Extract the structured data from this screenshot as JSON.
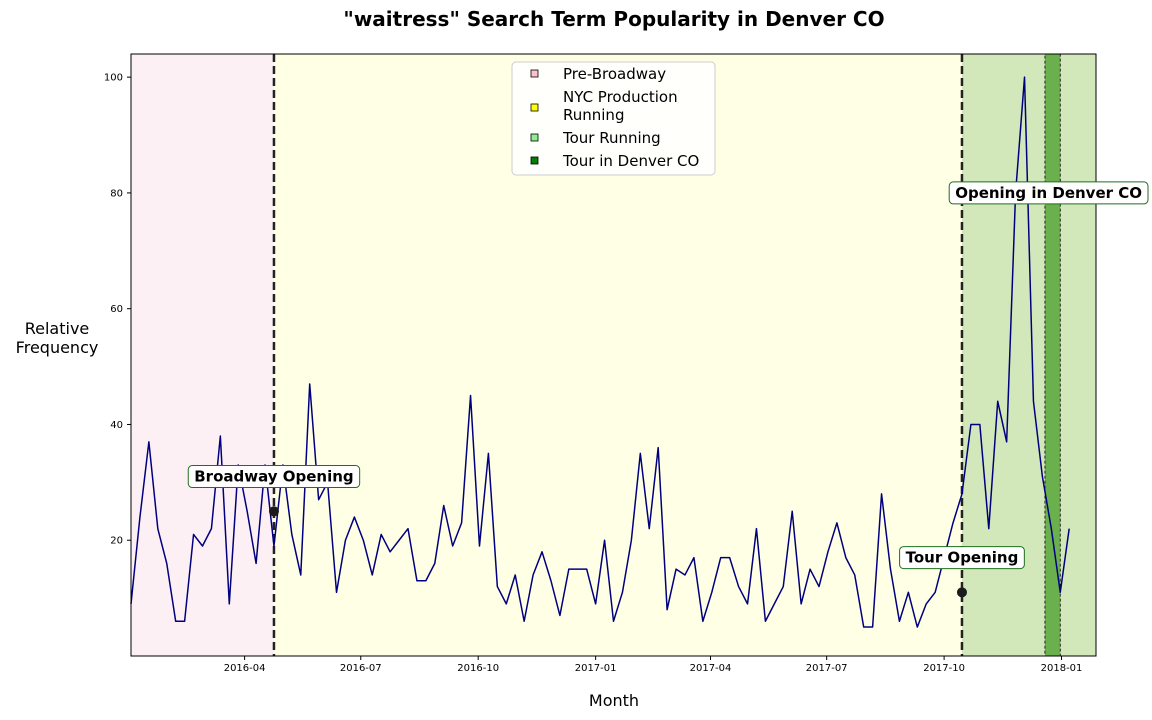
{
  "chart_data": {
    "type": "line",
    "title": "\"waitress\" Search Term Popularity in Denver CO",
    "xlabel": "Month",
    "ylabel_lines": [
      "Relative",
      "Frequency"
    ],
    "x_range": [
      "2016-01-03",
      "2018-01-28"
    ],
    "y_range": [
      0,
      104
    ],
    "y_ticks": [
      20,
      40,
      60,
      80,
      100
    ],
    "x_ticks": [
      "2016-04",
      "2016-07",
      "2016-10",
      "2017-01",
      "2017-04",
      "2017-07",
      "2017-10",
      "2018-01"
    ],
    "grid": false,
    "legend_position": "top-center",
    "line_color": "#00007f",
    "series": [
      {
        "start_date": "2016-01-03",
        "interval_days": 7,
        "values": [
          9,
          24,
          37,
          22,
          16,
          6,
          6,
          21,
          19,
          22,
          38,
          9,
          33,
          25,
          16,
          33,
          19,
          33,
          21,
          14,
          47,
          27,
          30,
          11,
          20,
          24,
          20,
          14,
          21,
          18,
          20,
          22,
          13,
          13,
          16,
          26,
          19,
          23,
          45,
          19,
          35,
          12,
          9,
          14,
          6,
          14,
          18,
          13,
          7,
          15,
          15,
          15,
          9,
          20,
          6,
          11,
          20,
          35,
          22,
          36,
          8,
          15,
          14,
          17,
          6,
          11,
          17,
          17,
          12,
          9,
          22,
          6,
          9,
          12,
          25,
          9,
          15,
          12,
          18,
          23,
          17,
          14,
          5,
          5,
          28,
          15,
          6,
          11,
          5,
          9,
          11,
          17,
          23,
          28,
          40,
          40,
          22,
          44,
          37,
          80,
          100,
          44,
          31,
          22,
          11,
          22
        ]
      }
    ],
    "regions": [
      {
        "label": "Pre-Broadway",
        "start": "2016-01-03",
        "end": "2016-04-24",
        "color": "#fdf0f4",
        "legend_color": "#ffc0cb"
      },
      {
        "label": "NYC Production Running",
        "start": "2016-04-24",
        "end": "2017-10-15",
        "color": "#ffffe5",
        "legend_color": "#ffff00"
      },
      {
        "label": "Tour Running",
        "start": "2017-10-15",
        "end": "2018-01-28",
        "color": "#d2e8bb",
        "legend_color": "#90ee90"
      },
      {
        "label": "Tour in Denver CO",
        "start": "2017-12-19",
        "end": "2017-12-31",
        "color": "#6ab04c",
        "legend_color": "#008000"
      }
    ],
    "legend_lines": [
      [
        "Pre-Broadway"
      ],
      [
        "NYC Production",
        "Running"
      ],
      [
        "Tour Running"
      ],
      [
        "Tour in Denver CO"
      ]
    ],
    "markers": [
      {
        "date": "2016-04-24",
        "y": 25
      },
      {
        "date": "2017-10-15",
        "y": 11
      }
    ],
    "annotations": [
      {
        "text": "Broadway Opening",
        "date": "2016-04-24",
        "y": 31
      },
      {
        "text": "Tour Opening",
        "date": "2017-10-15",
        "y": 17
      },
      {
        "text": "Opening in Denver CO",
        "date": "2017-12-25",
        "y": 80
      }
    ],
    "vlines": [
      "2016-04-24",
      "2017-10-15"
    ]
  }
}
